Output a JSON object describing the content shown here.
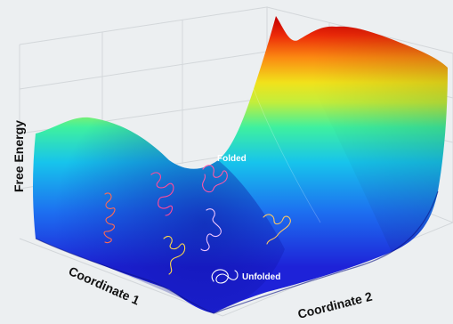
{
  "axes": {
    "z_label": "Free Energy",
    "x_label": "Coordinate 1",
    "y_label": "Coordinate 2"
  },
  "states": {
    "folded": "Folded",
    "unfolded": "Unfolded"
  },
  "colors": {
    "background": "#eceff1",
    "surface_low": "#1e22d8",
    "surface_mid": "#17c4ec",
    "surface_yellow": "#f1e21b",
    "surface_high": "#cc0000",
    "grid": "#d3d7da"
  },
  "icons": [
    "protein-conformation-icon"
  ]
}
